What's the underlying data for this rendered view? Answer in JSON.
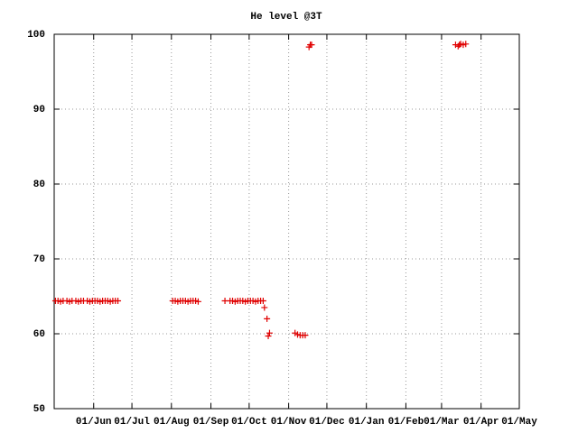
{
  "chart_data": {
    "type": "scatter",
    "title": "He level @3T",
    "color": "#e00000",
    "grid": true,
    "xlim": [
      "01/May",
      "01/May"
    ],
    "xticks": [
      "01/Jun",
      "01/Jul",
      "01/Aug",
      "01/Sep",
      "01/Oct",
      "01/Nov",
      "01/Dec",
      "01/Jan",
      "01/Feb",
      "01/Mar",
      "01/Apr",
      "01/May"
    ],
    "ylim": [
      50,
      100
    ],
    "yticks": [
      50,
      60,
      70,
      80,
      90,
      100
    ],
    "x": [
      "02/May",
      "04/May",
      "06/May",
      "08/May",
      "11/May",
      "13/May",
      "15/May",
      "18/May",
      "20/May",
      "22/May",
      "24/May",
      "27/May",
      "29/May",
      "31/May",
      "02/Jun",
      "04/Jun",
      "06/Jun",
      "08/Jun",
      "10/Jun",
      "12/Jun",
      "14/Jun",
      "16/Jun",
      "18/Jun",
      "20/Jun",
      "02/Aug",
      "04/Aug",
      "06/Aug",
      "08/Aug",
      "10/Aug",
      "12/Aug",
      "14/Aug",
      "16/Aug",
      "18/Aug",
      "20/Aug",
      "22/Aug",
      "12/Sep",
      "16/Sep",
      "18/Sep",
      "20/Sep",
      "22/Sep",
      "24/Sep",
      "26/Sep",
      "28/Sep",
      "30/Sep",
      "02/Oct",
      "04/Oct",
      "06/Oct",
      "08/Oct",
      "10/Oct",
      "12/Oct",
      "13/Oct",
      "15/Oct",
      "16/Oct",
      "17/Oct",
      "06/Nov",
      "08/Nov",
      "10/Nov",
      "12/Nov",
      "14/Nov",
      "17/Nov",
      "18/Nov",
      "19/Nov",
      "12/Mar",
      "14/Mar",
      "15/Mar",
      "16/Mar",
      "18/Mar",
      "20/Mar"
    ],
    "values": [
      64.4,
      64.4,
      64.3,
      64.4,
      64.4,
      64.3,
      64.4,
      64.4,
      64.3,
      64.4,
      64.4,
      64.4,
      64.3,
      64.4,
      64.4,
      64.4,
      64.3,
      64.4,
      64.4,
      64.4,
      64.3,
      64.4,
      64.4,
      64.4,
      64.4,
      64.4,
      64.3,
      64.4,
      64.4,
      64.4,
      64.3,
      64.4,
      64.4,
      64.4,
      64.3,
      64.4,
      64.4,
      64.4,
      64.3,
      64.4,
      64.4,
      64.4,
      64.3,
      64.4,
      64.4,
      64.4,
      64.3,
      64.4,
      64.4,
      64.4,
      63.5,
      62,
      59.7,
      60.1,
      60.1,
      59.9,
      59.8,
      59.8,
      59.8,
      98.3,
      98.6,
      98.6,
      98.6,
      98.4,
      98.6,
      98.7,
      98.6,
      98.7
    ]
  }
}
